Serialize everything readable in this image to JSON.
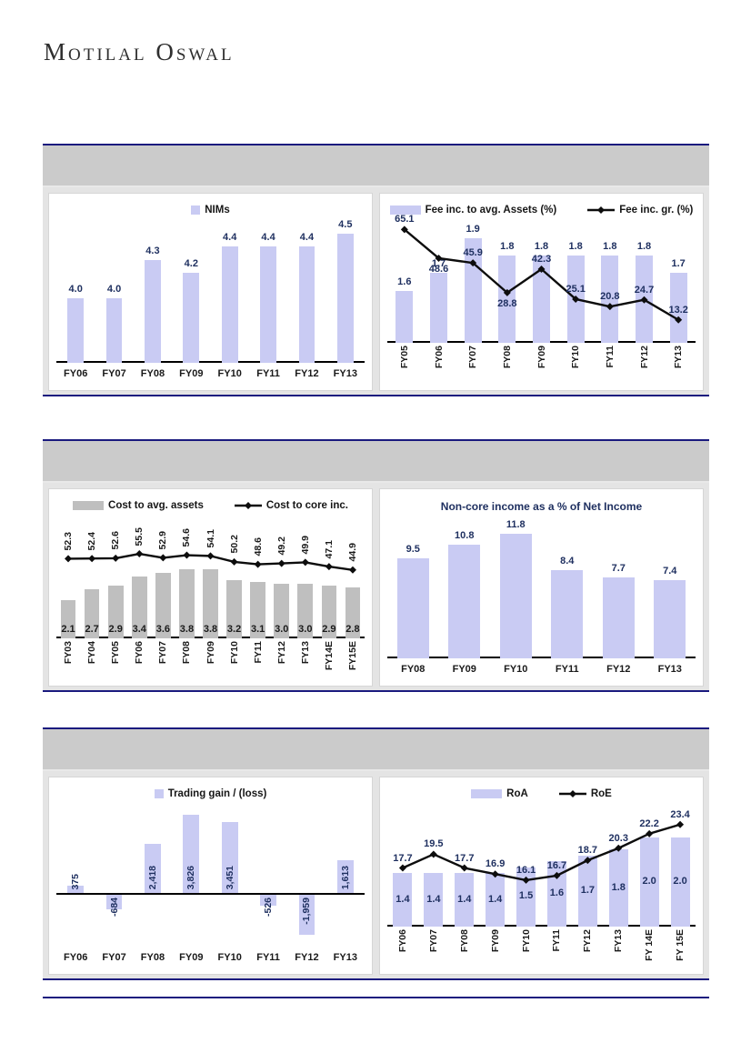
{
  "brand": {
    "logo": "Motilal Oswal"
  },
  "palette": {
    "navy_rule": "#1A1A7E",
    "header_band": "#CBCBCB",
    "lavender_bar": "#C9CBF3",
    "gray_bar": "#BFBFBF",
    "label_navy": "#1F3060",
    "label_dark": "#1a1a1a",
    "line_black": "#0d0d0d"
  },
  "chart_data": [
    {
      "type": "bar",
      "legend": [
        {
          "kind": "square",
          "color": "#C9CBF3",
          "label": "NIMs"
        }
      ],
      "categories": [
        "FY06",
        "FY07",
        "FY08",
        "FY09",
        "FY10",
        "FY11",
        "FY12",
        "FY13"
      ],
      "x_labels": "horizontal",
      "bars": {
        "name": "NIMs",
        "values": [
          4.0,
          4.0,
          4.3,
          4.2,
          4.4,
          4.4,
          4.4,
          4.5
        ],
        "labels": [
          "4.0",
          "4.0",
          "4.3",
          "4.2",
          "4.4",
          "4.4",
          "4.4",
          "4.5"
        ],
        "ymin": 3.5,
        "ymax": 4.6,
        "label_pos": "above",
        "color": "#C9CBF3",
        "frac": 0.42,
        "label_color": "#1F3060"
      }
    },
    {
      "type": "bar+line",
      "legend": [
        {
          "kind": "rect",
          "color": "#C9CBF3",
          "label": "Fee inc. to avg. Assets (%)"
        },
        {
          "kind": "line",
          "color": "#0d0d0d",
          "label": "Fee inc. gr. (%)"
        }
      ],
      "categories": [
        "FY05",
        "FY06",
        "FY07",
        "FY08",
        "FY09",
        "FY10",
        "FY11",
        "FY12",
        "FY13"
      ],
      "x_labels": "vertical",
      "bars": {
        "name": "Fee inc. to avg. Assets (%)",
        "values": [
          1.6,
          1.7,
          1.9,
          1.8,
          1.8,
          1.8,
          1.8,
          1.8,
          1.7
        ],
        "labels": [
          "1.6",
          "1.7",
          "1.9",
          "1.8",
          "1.8",
          "1.8",
          "1.8",
          "1.8",
          "1.7"
        ],
        "ymin": 1.3,
        "ymax": 2.0,
        "label_pos": "above",
        "color": "#C9CBF3",
        "frac": 0.5,
        "label_color": "#1F3060"
      },
      "line": {
        "name": "Fee inc. gr. (%)",
        "values": [
          65.1,
          48.6,
          45.9,
          28.8,
          42.3,
          25.1,
          20.8,
          24.7,
          13.2
        ],
        "labels": [
          "65.1",
          "48.6",
          "45.9",
          "28.8",
          "42.3",
          "25.1",
          "20.8",
          "24.7",
          "13.2"
        ],
        "ymin": 0,
        "ymax": 70,
        "label_pos": [
          "above",
          "below",
          "above",
          "below",
          "above",
          "above",
          "above",
          "above",
          "above"
        ],
        "label_color": "#1F3060"
      }
    },
    {
      "type": "bar+line",
      "legend": [
        {
          "kind": "rect",
          "color": "#BFBFBF",
          "label": "Cost to avg. assets"
        },
        {
          "kind": "line",
          "color": "#0d0d0d",
          "label": "Cost to core inc."
        }
      ],
      "categories": [
        "FY03",
        "FY04",
        "FY05",
        "FY06",
        "FY07",
        "FY08",
        "FY09",
        "FY10",
        "FY11",
        "FY12",
        "FY13",
        "FY14E",
        "FY15E"
      ],
      "x_labels": "vertical",
      "bars": {
        "name": "Cost to avg. assets",
        "values": [
          2.1,
          2.7,
          2.9,
          3.4,
          3.6,
          3.8,
          3.8,
          3.2,
          3.1,
          3.0,
          3.0,
          2.9,
          2.8
        ],
        "labels": [
          "2.1",
          "2.7",
          "2.9",
          "3.4",
          "3.6",
          "3.8",
          "3.8",
          "3.2",
          "3.1",
          "3.0",
          "3.0",
          "2.9",
          "2.8"
        ],
        "ymin": 0,
        "ymax": 6.7,
        "label_pos": "bottom",
        "color": "#BFBFBF",
        "frac": 0.64,
        "label_color": "#1a1a1a"
      },
      "line": {
        "name": "Cost to core inc.",
        "values": [
          52.3,
          52.4,
          52.6,
          55.5,
          52.9,
          54.6,
          54.1,
          50.2,
          48.6,
          49.2,
          49.9,
          47.1,
          44.9
        ],
        "labels": [
          "52.3",
          "52.4",
          "52.6",
          "55.5",
          "52.9",
          "54.6",
          "54.1",
          "50.2",
          "48.6",
          "49.2",
          "49.9",
          "47.1",
          "44.9"
        ],
        "ymin": 0,
        "ymax": 80,
        "label_pos": "rotated-top",
        "label_color": "#1a1a1a"
      }
    },
    {
      "type": "bar",
      "title": "Non-core income as a % of Net Income",
      "categories": [
        "FY08",
        "FY09",
        "FY10",
        "FY11",
        "FY12",
        "FY13"
      ],
      "x_labels": "horizontal",
      "bars": {
        "name": "Non-core income as a % of Net Income",
        "values": [
          9.5,
          10.8,
          11.8,
          8.4,
          7.7,
          7.4
        ],
        "labels": [
          "9.5",
          "10.8",
          "11.8",
          "8.4",
          "7.7",
          "7.4"
        ],
        "ymin": 0,
        "ymax": 13.3,
        "label_pos": "above",
        "color": "#C9CBF3",
        "frac": 0.62,
        "label_color": "#1F3060"
      }
    },
    {
      "type": "bar",
      "legend": [
        {
          "kind": "square",
          "color": "#C9CBF3",
          "label": "Trading gain / (loss)"
        }
      ],
      "categories": [
        "FY06",
        "FY07",
        "FY08",
        "FY09",
        "FY10",
        "FY11",
        "FY12",
        "FY13"
      ],
      "x_labels": "horizontal",
      "bars": {
        "name": "Trading gain / (loss)",
        "values": [
          375,
          -684,
          2418,
          3826,
          3451,
          -526,
          -1959,
          1613
        ],
        "labels": [
          "375",
          "-684",
          "2,418",
          "3,826",
          "3,451",
          "-526",
          "-1,959",
          "1,613"
        ],
        "ymin": -2600,
        "ymax": 4300,
        "label_pos": "rotated-base",
        "color": "#C9CBF3",
        "frac": 0.42,
        "label_color": "#1F3060"
      }
    },
    {
      "type": "bar+line",
      "legend": [
        {
          "kind": "rect",
          "color": "#C9CBF3",
          "label": "RoA"
        },
        {
          "kind": "line",
          "color": "#0d0d0d",
          "label": "RoE"
        }
      ],
      "categories": [
        "FY06",
        "FY07",
        "FY08",
        "FY09",
        "FY10",
        "FY11",
        "FY12",
        "FY13",
        "FY 14E",
        "FY 15E"
      ],
      "x_labels": "vertical",
      "bars": {
        "name": "RoA",
        "values": [
          1.4,
          1.4,
          1.4,
          1.4,
          1.5,
          1.6,
          1.7,
          1.8,
          2.0,
          2.0
        ],
        "labels": [
          "1.4",
          "1.4",
          "1.4",
          "1.4",
          "1.5",
          "1.6",
          "1.7",
          "1.8",
          "2.0",
          "2.0"
        ],
        "ymin": 0.5,
        "ymax": 2.55,
        "label_pos": "center",
        "color": "#C9CBF3",
        "frac": 0.62,
        "label_color": "#1F3060"
      },
      "line": {
        "name": "RoE",
        "values": [
          17.7,
          19.5,
          17.7,
          16.9,
          16.1,
          16.7,
          18.7,
          20.3,
          22.2,
          23.4
        ],
        "labels": [
          "17.7",
          "19.5",
          "17.7",
          "16.9",
          "16.1",
          "16.7",
          "18.7",
          "20.3",
          "22.2",
          "23.4"
        ],
        "ymin": 10,
        "ymax": 26,
        "label_pos": "above",
        "label_color": "#1F3060"
      }
    }
  ]
}
